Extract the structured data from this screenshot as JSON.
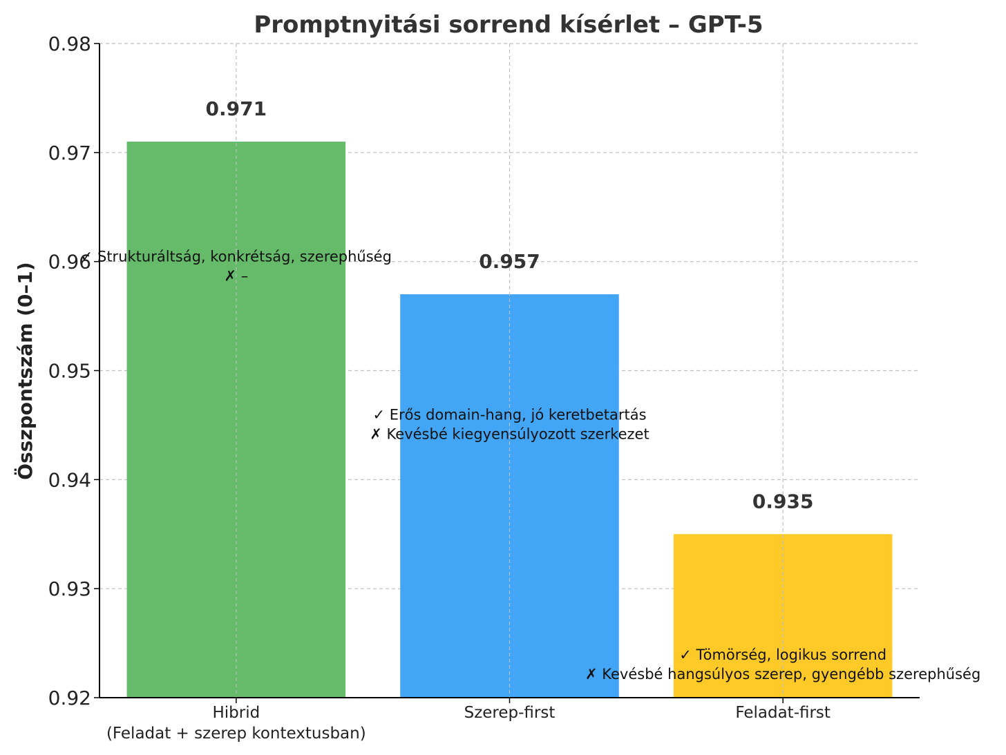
{
  "chart_data": {
    "type": "bar",
    "title": "Promptnyitási sorrend kísérlet – GPT-5",
    "xlabel": "",
    "ylabel": "Összpontszám (0–1)",
    "ylim": [
      0.92,
      0.98
    ],
    "yticks": [
      "0.92",
      "0.93",
      "0.94",
      "0.95",
      "0.96",
      "0.97",
      "0.98"
    ],
    "grid": true,
    "categories": [
      [
        "Hibrid",
        "(Feladat + szerep kontextusban)"
      ],
      [
        "Szerep-first"
      ],
      [
        "Feladat-first"
      ]
    ],
    "values": [
      0.971,
      0.957,
      0.935
    ],
    "value_labels": [
      "0.971",
      "0.957",
      "0.935"
    ],
    "colors": [
      "#66bb6a",
      "#42a5f5",
      "#ffca28"
    ],
    "annotations": [
      {
        "lines": [
          "✓ Strukturáltság, konkrétság, szerephűség",
          "✗ –"
        ],
        "y": 0.96
      },
      {
        "lines": [
          "✓ Erős domain-hang, jó keretbetartás",
          "✗ Kevésbé kiegyensúlyozott szerkezet"
        ],
        "y": 0.9455
      },
      {
        "lines": [
          "✓ Tömörség, logikus sorrend",
          "✗ Kevésbé hangsúlyos szerep, gyengébb szerephűség"
        ],
        "y": 0.9235
      }
    ]
  }
}
